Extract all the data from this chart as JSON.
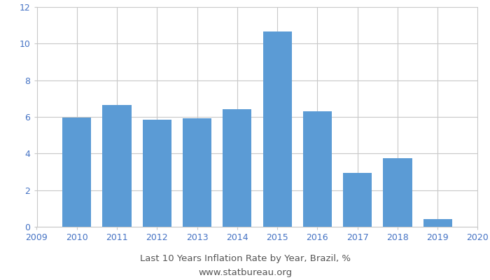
{
  "bar_years": [
    2010,
    2011,
    2012,
    2013,
    2014,
    2015,
    2016,
    2017,
    2018,
    2019
  ],
  "values": [
    5.97,
    6.64,
    5.84,
    5.91,
    6.41,
    10.67,
    6.29,
    2.95,
    3.75,
    0.42
  ],
  "bar_color": "#5b9bd5",
  "title": "Last 10 Years Inflation Rate by Year, Brazil, %",
  "subtitle": "www.statbureau.org",
  "xlim": [
    2009,
    2020
  ],
  "ylim": [
    0,
    12
  ],
  "yticks": [
    0,
    2,
    4,
    6,
    8,
    10,
    12
  ],
  "xticks": [
    2009,
    2010,
    2011,
    2012,
    2013,
    2014,
    2015,
    2016,
    2017,
    2018,
    2019,
    2020
  ],
  "bg_color": "#ffffff",
  "grid_color": "#c8c8c8",
  "tick_color": "#4472c4",
  "title_fontsize": 9.5,
  "subtitle_fontsize": 9.5,
  "tick_fontsize": 9,
  "bar_width": 0.72
}
